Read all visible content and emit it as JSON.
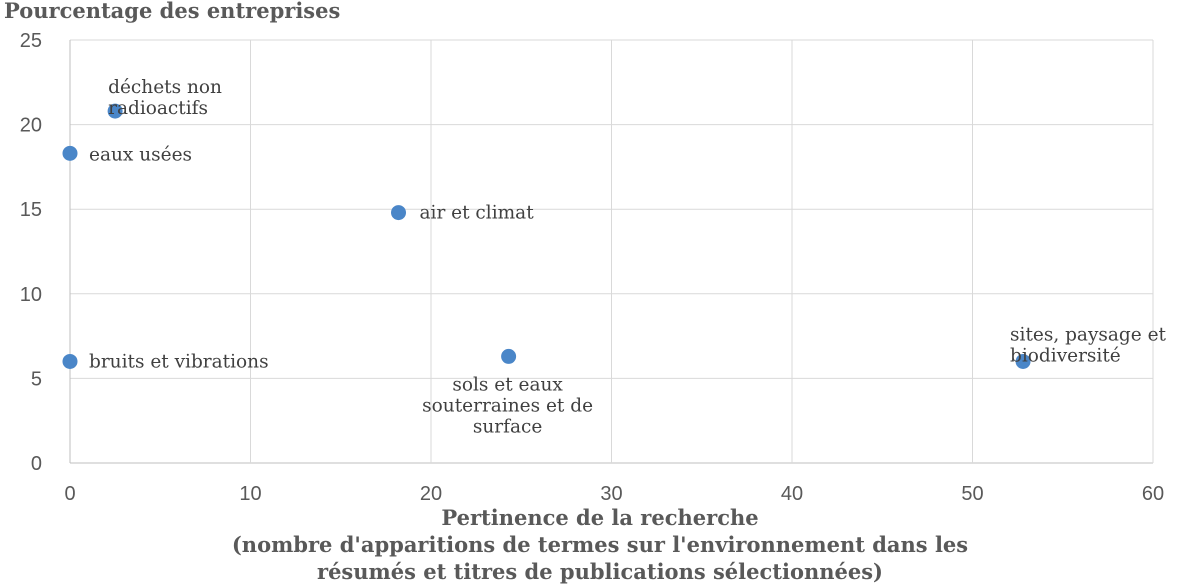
{
  "chart_data": {
    "type": "scatter",
    "title": "",
    "ylabel": "Pourcentage des entreprises",
    "xlabel_lines": [
      "Pertinence de la recherche",
      "(nombre d'apparitions de termes sur l'environnement dans les",
      "résumés et titres de publications sélectionnées)"
    ],
    "xlim": [
      0,
      60
    ],
    "ylim": [
      0,
      25
    ],
    "xticks": [
      "0",
      "10",
      "20",
      "30",
      "40",
      "50",
      "60"
    ],
    "yticks": [
      "0",
      "5",
      "10",
      "15",
      "20",
      "25"
    ],
    "grid": true,
    "marker_color": "#4a86c8",
    "points": [
      {
        "x": 2.5,
        "y": 20.8,
        "label_lines": [
          "déchets non",
          "radioactifs"
        ]
      },
      {
        "x": 0,
        "y": 18.3,
        "label_lines": [
          "eaux usées"
        ]
      },
      {
        "x": 18.2,
        "y": 14.8,
        "label_lines": [
          "air et climat"
        ]
      },
      {
        "x": 0,
        "y": 6.0,
        "label_lines": [
          "bruits et vibrations"
        ]
      },
      {
        "x": 24.3,
        "y": 6.3,
        "label_lines": [
          "sols et eaux",
          "souterraines et de",
          "surface"
        ]
      },
      {
        "x": 52.8,
        "y": 6.0,
        "label_lines": [
          "sites, paysage et",
          "biodiversité"
        ]
      }
    ]
  }
}
